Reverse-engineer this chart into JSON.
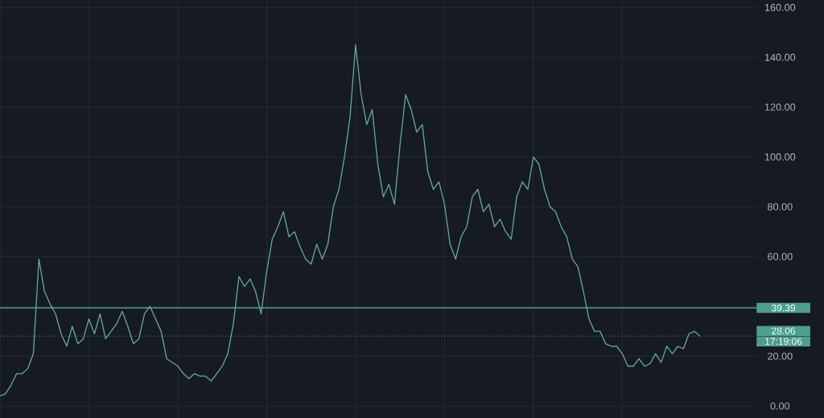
{
  "chart_data": {
    "type": "line",
    "categories": [
      null,
      null,
      null,
      null,
      null,
      null,
      null,
      null,
      null,
      null,
      null,
      null,
      null,
      null,
      null,
      null,
      null,
      null,
      null,
      null,
      null,
      null,
      null,
      null,
      null,
      null,
      null,
      null,
      null,
      null,
      null,
      null,
      null,
      null,
      null,
      null,
      null,
      null,
      null,
      null,
      null,
      null,
      null,
      null,
      null,
      null,
      null,
      null,
      null,
      null,
      null,
      null,
      null,
      null,
      null,
      null,
      null,
      null,
      null,
      null,
      null,
      null,
      null,
      null,
      null,
      null,
      null,
      null,
      null,
      null,
      null,
      null,
      null,
      null,
      null,
      null,
      null,
      null,
      null,
      null,
      null,
      null,
      null,
      null,
      null,
      null,
      null,
      null,
      null,
      null,
      null,
      null,
      null,
      null,
      null,
      null,
      null,
      null,
      null,
      null,
      null,
      null,
      null,
      null,
      null,
      null,
      null,
      null,
      null,
      null,
      null,
      null,
      null,
      null,
      null,
      null,
      null,
      null,
      null,
      null,
      null,
      null,
      null,
      null,
      null,
      null,
      null
    ],
    "series": [
      {
        "color": "#5fa898",
        "values": [
          4,
          5,
          8.5,
          13,
          13,
          15,
          21,
          59,
          46,
          41,
          37,
          29,
          24,
          32,
          25,
          27,
          35,
          29,
          37,
          27,
          30,
          33,
          38,
          32,
          25,
          27,
          37,
          40,
          35,
          30,
          19,
          17.5,
          16,
          13,
          11,
          13,
          12,
          12,
          10,
          13,
          16,
          21,
          33,
          52,
          48,
          51,
          46,
          37,
          54,
          67,
          72,
          78,
          68,
          70,
          64,
          59,
          57,
          65,
          59,
          65,
          80,
          87,
          100,
          116,
          145,
          125,
          113,
          119,
          97,
          84,
          89,
          81,
          105,
          125,
          119,
          110,
          113,
          94,
          87,
          90,
          81,
          65,
          59,
          68,
          72,
          84,
          87,
          78,
          81,
          72,
          75,
          70,
          67,
          84,
          90,
          87,
          100,
          97,
          87,
          80,
          78,
          72,
          68,
          59,
          56,
          46,
          35,
          30,
          30,
          25,
          24,
          24,
          21,
          16,
          16,
          19,
          16,
          17,
          21,
          17.5,
          24,
          21,
          24,
          23,
          29,
          30,
          28
        ]
      }
    ],
    "ylim": [
      -4.8,
      163
    ],
    "yticks": [
      {
        "value": 0,
        "label": "0.00"
      },
      {
        "value": 20,
        "label": "20.00"
      },
      {
        "value": 40,
        "label": null
      },
      {
        "value": 60,
        "label": "60.00"
      },
      {
        "value": 80,
        "label": "80.00"
      },
      {
        "value": 100,
        "label": "100.00"
      },
      {
        "value": 120,
        "label": "120.00"
      },
      {
        "value": 140,
        "label": "140.00"
      },
      {
        "value": 160,
        "label": "160.00"
      }
    ],
    "grid": true,
    "ref_lines": [
      {
        "axis": "y",
        "value": 39.39,
        "label": "39.39",
        "color": "#4e9e8c",
        "line_style": "solid"
      },
      {
        "axis": "y",
        "value": 28.06,
        "label": "28.06",
        "color": "#4e9e8c",
        "line_style": "dotted"
      }
    ],
    "annotations": [
      "17:19:06"
    ]
  }
}
